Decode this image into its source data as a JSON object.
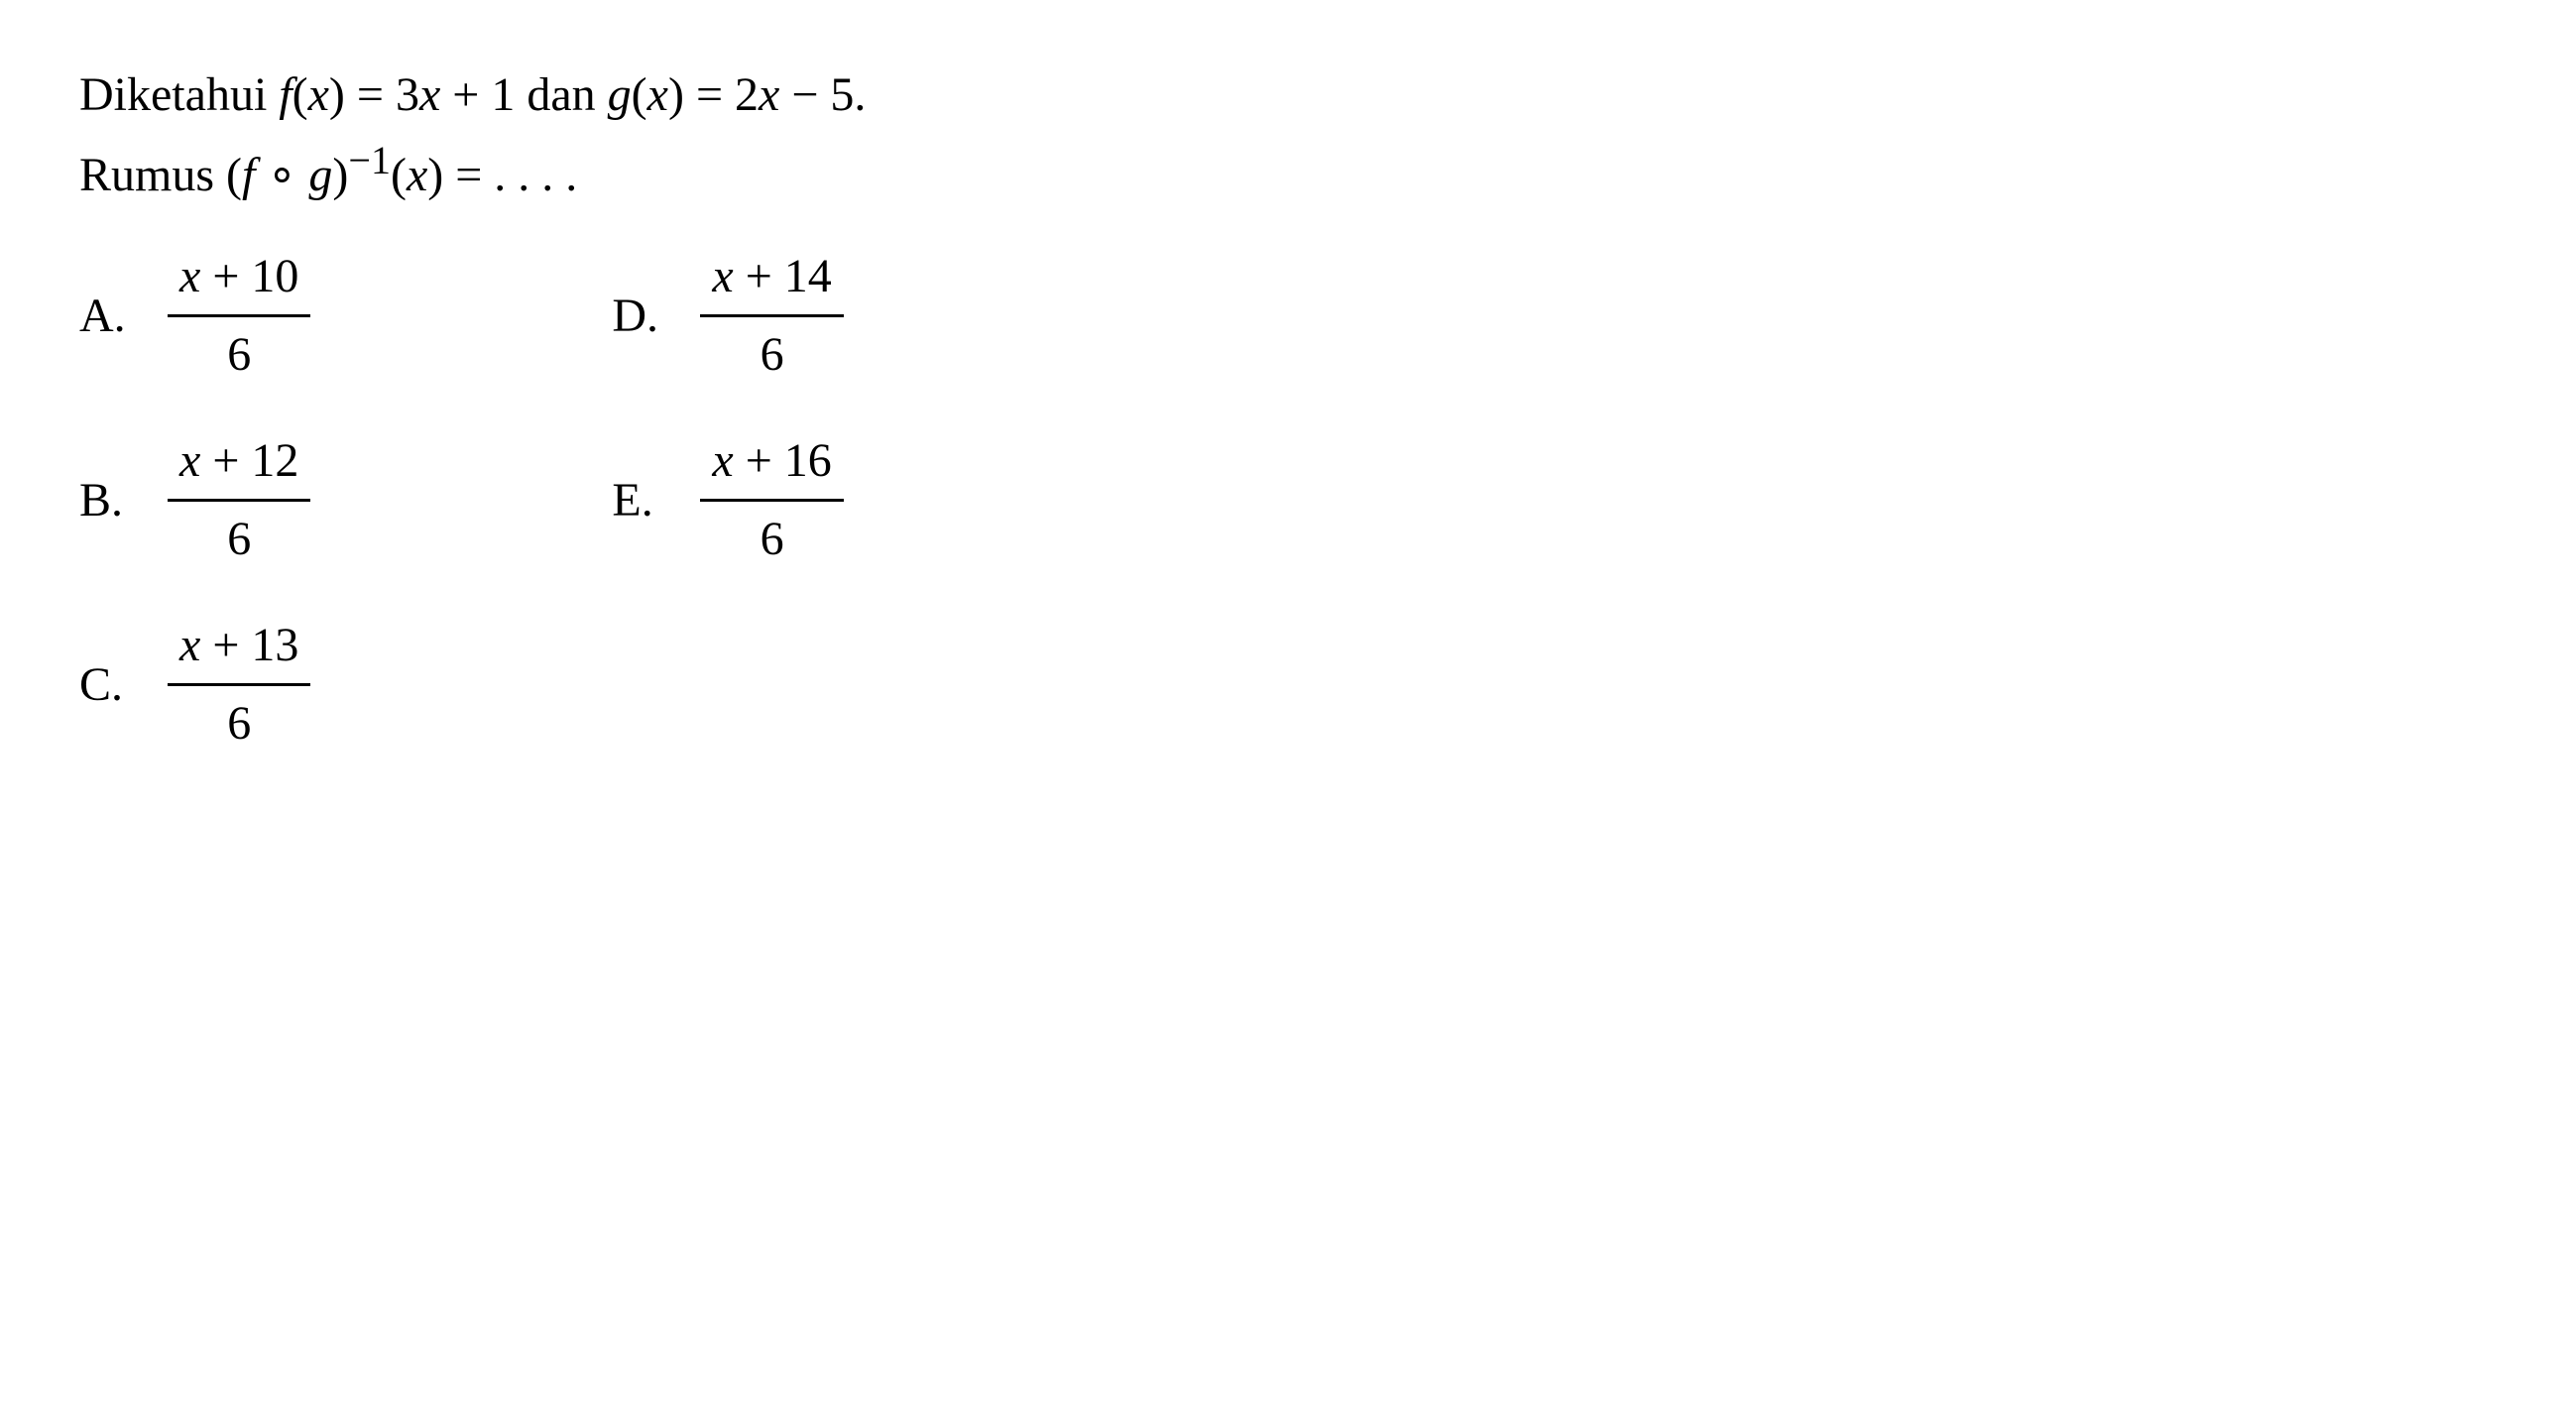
{
  "problem": {
    "line1_pre": "Diketahui ",
    "fx": "f",
    "line1_mid1": "(",
    "x1": "x",
    "line1_mid2": ") = 3",
    "x2": "x",
    "line1_mid3": " + 1 dan ",
    "gx": "g",
    "line1_mid4": "(",
    "x3": "x",
    "line1_mid5": ") = 2",
    "x4": "x",
    "line1_post": " − 5.",
    "line2_pre": "Rumus (",
    "line2_f": "f",
    "line2_circ": " ∘ ",
    "line2_g": "g",
    "line2_mid": ")",
    "line2_exp": "−1",
    "line2_paren": "(",
    "line2_x": "x",
    "line2_post": ") = . . . ."
  },
  "options": {
    "a": {
      "label": "A.",
      "num_pre": "x",
      "num_post": " + 10",
      "denom": "6"
    },
    "b": {
      "label": "B.",
      "num_pre": "x",
      "num_post": " + 12",
      "denom": "6"
    },
    "c": {
      "label": "C.",
      "num_pre": "x",
      "num_post": " + 13",
      "denom": "6"
    },
    "d": {
      "label": "D.",
      "num_pre": "x",
      "num_post": " + 14",
      "denom": "6"
    },
    "e": {
      "label": "E.",
      "num_pre": "x",
      "num_post": " + 16",
      "denom": "6"
    }
  },
  "styling": {
    "background_color": "#ffffff",
    "text_color": "#000000",
    "font_family": "Times New Roman",
    "body_fontsize": 48,
    "fraction_border_width": 3
  }
}
